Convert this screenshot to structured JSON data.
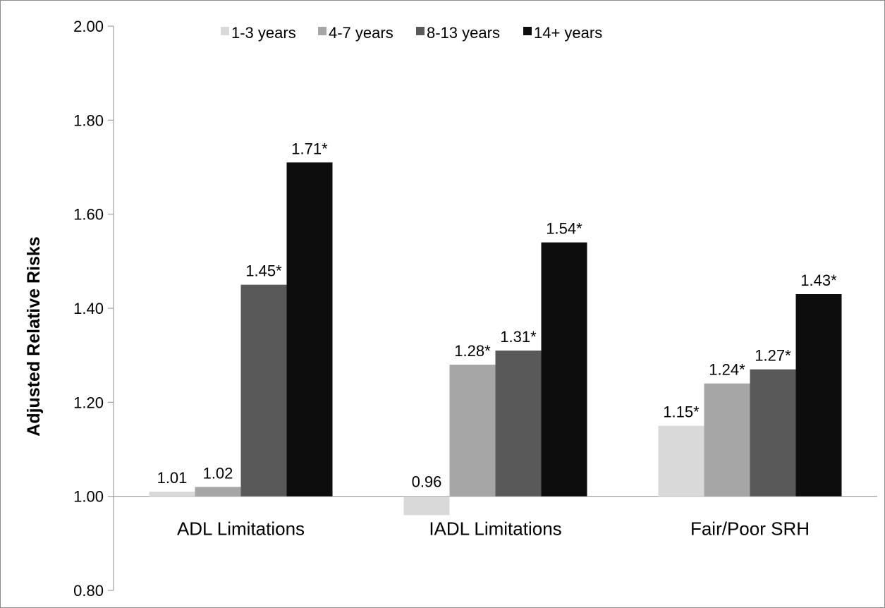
{
  "chart_data": {
    "type": "bar",
    "title": "",
    "xlabel": "",
    "ylabel": "Adjusted Relative Risks",
    "ylim": [
      0.8,
      2.0
    ],
    "baseline": 1.0,
    "yticks": [
      "0.80",
      "1.00",
      "1.20",
      "1.40",
      "1.60",
      "1.80",
      "2.00"
    ],
    "grid": false,
    "legend_position": "top-center",
    "categories": [
      "ADL Limitations",
      "IADL Limitations",
      "Fair/Poor SRH"
    ],
    "series": [
      {
        "name": "1-3 years",
        "color": "#d9d9d9",
        "values": [
          1.01,
          0.96,
          1.15
        ],
        "labels": [
          "1.01",
          "0.96",
          "1.15*"
        ]
      },
      {
        "name": "4-7 years",
        "color": "#a6a6a6",
        "values": [
          1.02,
          1.28,
          1.24
        ],
        "labels": [
          "1.02",
          "1.28*",
          "1.24*"
        ]
      },
      {
        "name": "8-13 years",
        "color": "#595959",
        "values": [
          1.45,
          1.31,
          1.27
        ],
        "labels": [
          "1.45*",
          "1.31*",
          "1.27*"
        ]
      },
      {
        "name": "14+ years",
        "color": "#0d0d0d",
        "values": [
          1.71,
          1.54,
          1.43
        ],
        "labels": [
          "1.71*",
          "1.54*",
          "1.43*"
        ]
      }
    ]
  }
}
